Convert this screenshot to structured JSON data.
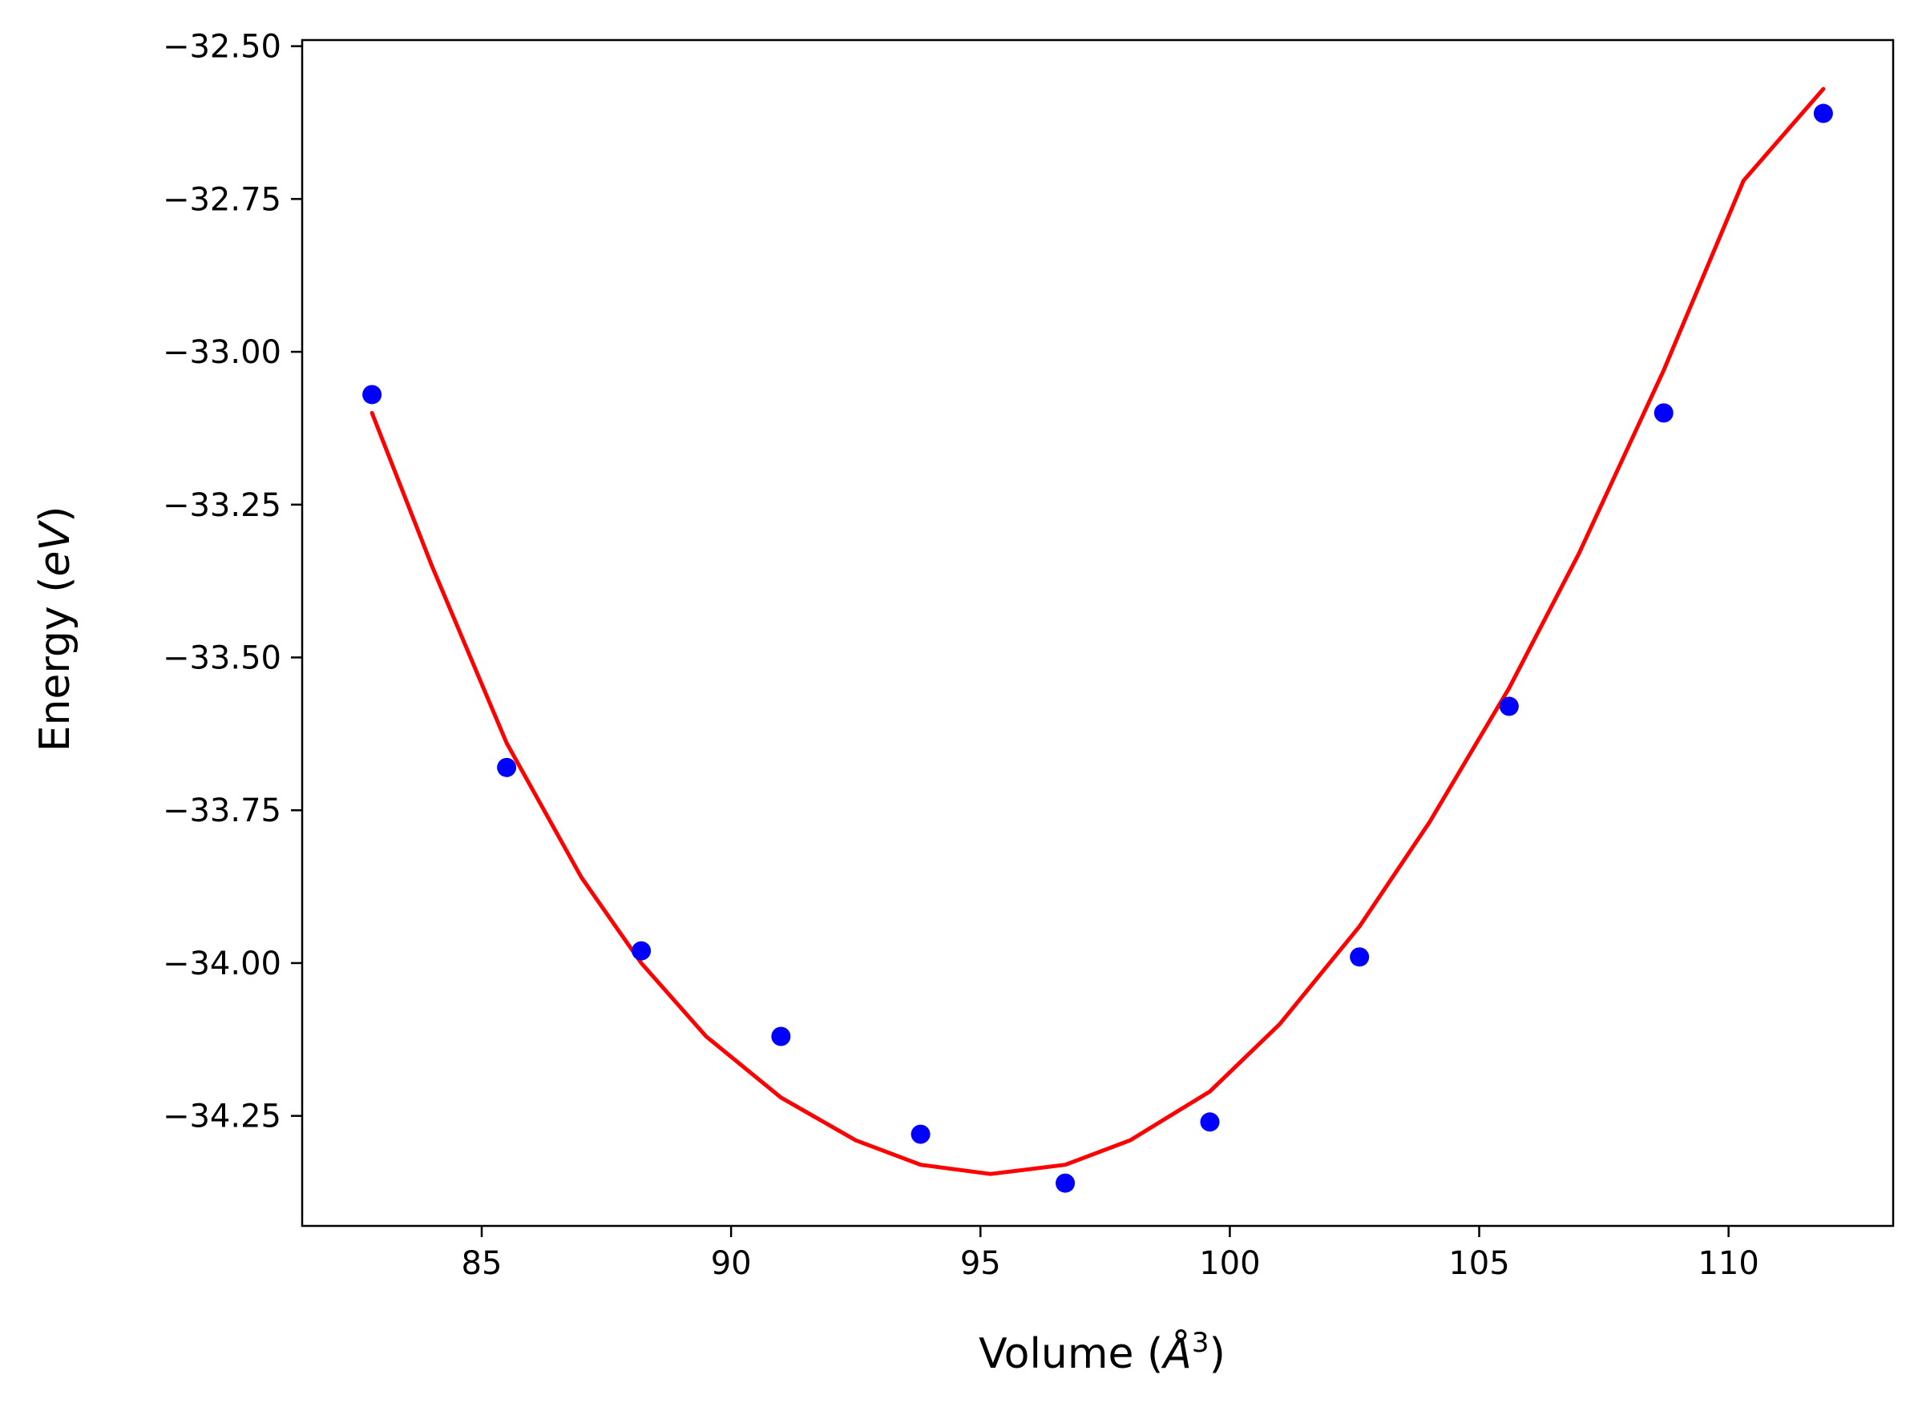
{
  "chart_data": {
    "type": "scatter",
    "title": "",
    "xlabel_parts": {
      "text": "Volume (",
      "symbol": "Å",
      "sup": "3",
      "close": ")"
    },
    "ylabel_parts": {
      "text": "Energy (",
      "unit": "eV",
      "close": ")"
    },
    "xlim": [
      81.4,
      113.3
    ],
    "ylim": [
      -34.43,
      -32.49
    ],
    "xticks": [
      85,
      90,
      95,
      100,
      105,
      110
    ],
    "xtick_labels": [
      "85",
      "90",
      "95",
      "100",
      "105",
      "110"
    ],
    "yticks": [
      -32.5,
      -32.75,
      -33.0,
      -33.25,
      -33.5,
      -33.75,
      -34.0,
      -34.25
    ],
    "ytick_labels": [
      "−32.50",
      "−32.75",
      "−33.00",
      "−33.25",
      "−33.50",
      "−33.75",
      "−34.00",
      "−34.25"
    ],
    "grid": false,
    "series": [
      {
        "name": "data",
        "kind": "scatter",
        "color": "#0000ff",
        "x": [
          82.8,
          85.5,
          88.2,
          91.0,
          93.8,
          96.7,
          99.6,
          102.6,
          105.6,
          108.7,
          111.9
        ],
        "y": [
          -33.07,
          -33.68,
          -33.98,
          -34.12,
          -34.28,
          -34.36,
          -34.26,
          -33.99,
          -33.58,
          -33.1,
          -32.61
        ]
      },
      {
        "name": "fit",
        "kind": "line",
        "color": "#ff0000",
        "x": [
          82.8,
          84.0,
          85.5,
          87.0,
          88.2,
          89.5,
          91.0,
          92.5,
          93.8,
          95.2,
          96.7,
          98.0,
          99.6,
          101.0,
          102.6,
          104.0,
          105.6,
          107.0,
          108.7,
          110.3,
          111.9
        ],
        "y": [
          -33.1,
          -33.35,
          -33.64,
          -33.86,
          -34.0,
          -34.12,
          -34.22,
          -34.29,
          -34.33,
          -34.345,
          -34.33,
          -34.29,
          -34.21,
          -34.1,
          -33.94,
          -33.77,
          -33.55,
          -33.33,
          -33.03,
          -32.72,
          -32.57
        ]
      }
    ]
  }
}
